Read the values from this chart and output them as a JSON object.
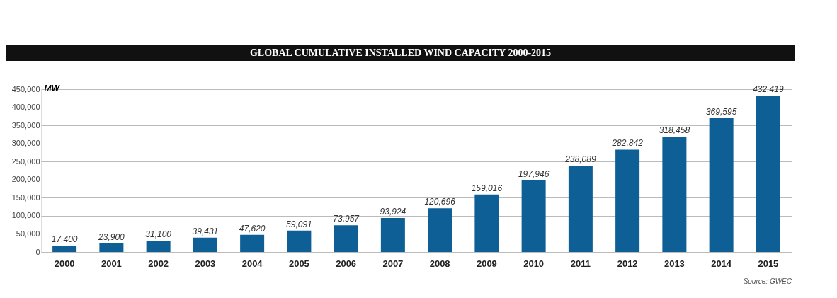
{
  "chart_data": {
    "type": "bar",
    "title": "GLOBAL CUMULATIVE INSTALLED WIND CAPACITY 2000-2015",
    "ylabel": "MW",
    "categories": [
      "2000",
      "2001",
      "2002",
      "2003",
      "2004",
      "2005",
      "2006",
      "2007",
      "2008",
      "2009",
      "2010",
      "2011",
      "2012",
      "2013",
      "2014",
      "2015"
    ],
    "values": [
      17400,
      23900,
      31100,
      39431,
      47620,
      59091,
      73957,
      93924,
      120696,
      159016,
      197946,
      238089,
      282842,
      318458,
      369595,
      432419
    ],
    "color": "#0e5f96",
    "ylim": [
      0,
      450000
    ],
    "yticks": [
      0,
      {
        "value": 50000,
        "label": "50,000"
      },
      {
        "value": 100000,
        "label": "100,000"
      },
      {
        "value": 150000,
        "label": "150,000"
      },
      {
        "value": 200000,
        "label": "200,000"
      },
      {
        "value": 250000,
        "label": "250,000"
      },
      {
        "value": 300000,
        "label": "300,000"
      },
      {
        "value": 350000,
        "label": "350,000"
      },
      {
        "value": 400000,
        "label": "400,000"
      },
      {
        "value": 450000,
        "label": "450,000"
      }
    ],
    "grid": "y",
    "data_labels": true,
    "value_labels": [
      "17,400",
      "23,900",
      "31,100",
      "39,431",
      "47,620",
      "59,091",
      "73,957",
      "93,924",
      "120,696",
      "159,016",
      "197,946",
      "238,089",
      "282,842",
      "318,458",
      "369,595",
      "432,419"
    ],
    "annotations": [
      "Source: GWEC"
    ]
  }
}
